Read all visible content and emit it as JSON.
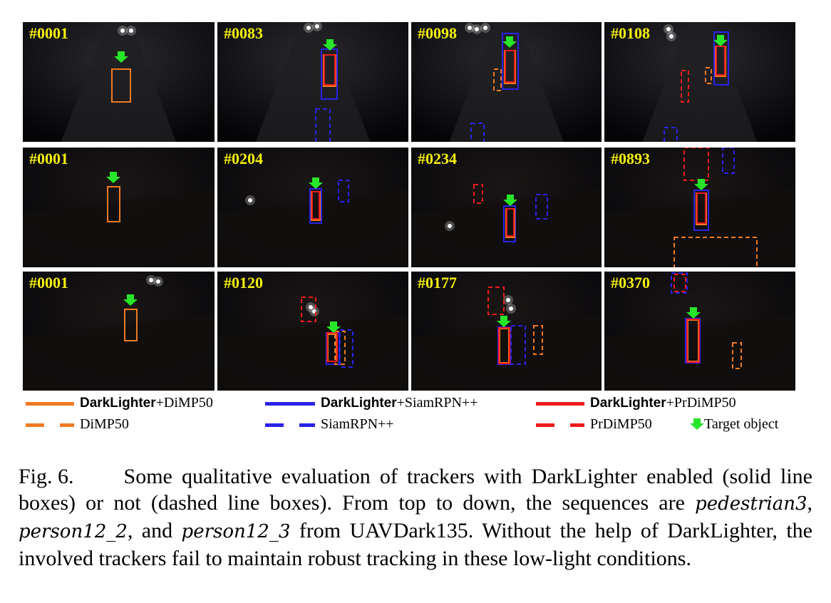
{
  "colors": {
    "darklighter_dimp50": "#f07a22",
    "dimp50": "#f07a22",
    "darklighter_siamrpn": "#2a22e8",
    "siamrpn": "#2a22e8",
    "darklighter_prdimp50": "#ee1c1c",
    "prdimp50": "#ee1c1c",
    "target_arrow": "#27e62a",
    "frame_label": "#f5f10a"
  },
  "frames": [
    {
      "label": "#0001",
      "row": 0,
      "col": 0
    },
    {
      "label": "#0083",
      "row": 0,
      "col": 1
    },
    {
      "label": "#0098",
      "row": 0,
      "col": 2
    },
    {
      "label": "#0108",
      "row": 0,
      "col": 3
    },
    {
      "label": "#0001",
      "row": 1,
      "col": 0
    },
    {
      "label": "#0204",
      "row": 1,
      "col": 1
    },
    {
      "label": "#0234",
      "row": 1,
      "col": 2
    },
    {
      "label": "#0893",
      "row": 1,
      "col": 3
    },
    {
      "label": "#0001",
      "row": 2,
      "col": 0
    },
    {
      "label": "#0120",
      "row": 2,
      "col": 1
    },
    {
      "label": "#0177",
      "row": 2,
      "col": 2
    },
    {
      "label": "#0370",
      "row": 2,
      "col": 3
    }
  ],
  "legend": [
    {
      "bold": "DarkLighter",
      "rest": "+DiMP50",
      "style": "solid",
      "color_key": "darklighter_dimp50"
    },
    {
      "bold": "DarkLighter",
      "rest": "+SiamRPN++",
      "style": "solid",
      "color_key": "darklighter_siamrpn"
    },
    {
      "bold": "DarkLighter",
      "rest": "+PrDiMP50",
      "style": "solid",
      "color_key": "darklighter_prdimp50"
    },
    {
      "bold": "",
      "rest": "DiMP50",
      "style": "dashed",
      "color_key": "dimp50"
    },
    {
      "bold": "",
      "rest": "SiamRPN++",
      "style": "dashed",
      "color_key": "siamrpn"
    },
    {
      "bold": "",
      "rest": "PrDiMP50",
      "style": "dashed",
      "color_key": "prdimp50"
    },
    {
      "bold": "",
      "rest": "Target object",
      "style": "arrow",
      "color_key": "target_arrow"
    }
  ],
  "caption": {
    "fig_number": "Fig. 6.",
    "text_1": "Some qualitative evaluation of trackers with DarkLighter enabled (solid line boxes) or not (dashed line boxes). From top to down, the sequences are",
    "seq_1": "pedestrian3",
    "sep_1": ",",
    "seq_2": "person12_2",
    "sep_2": ", and",
    "seq_3": "person12_3",
    "text_2": "from UAVDark135. Without the help of DarkLighter, the involved trackers fail to maintain robust tracking in these low-light conditions."
  }
}
